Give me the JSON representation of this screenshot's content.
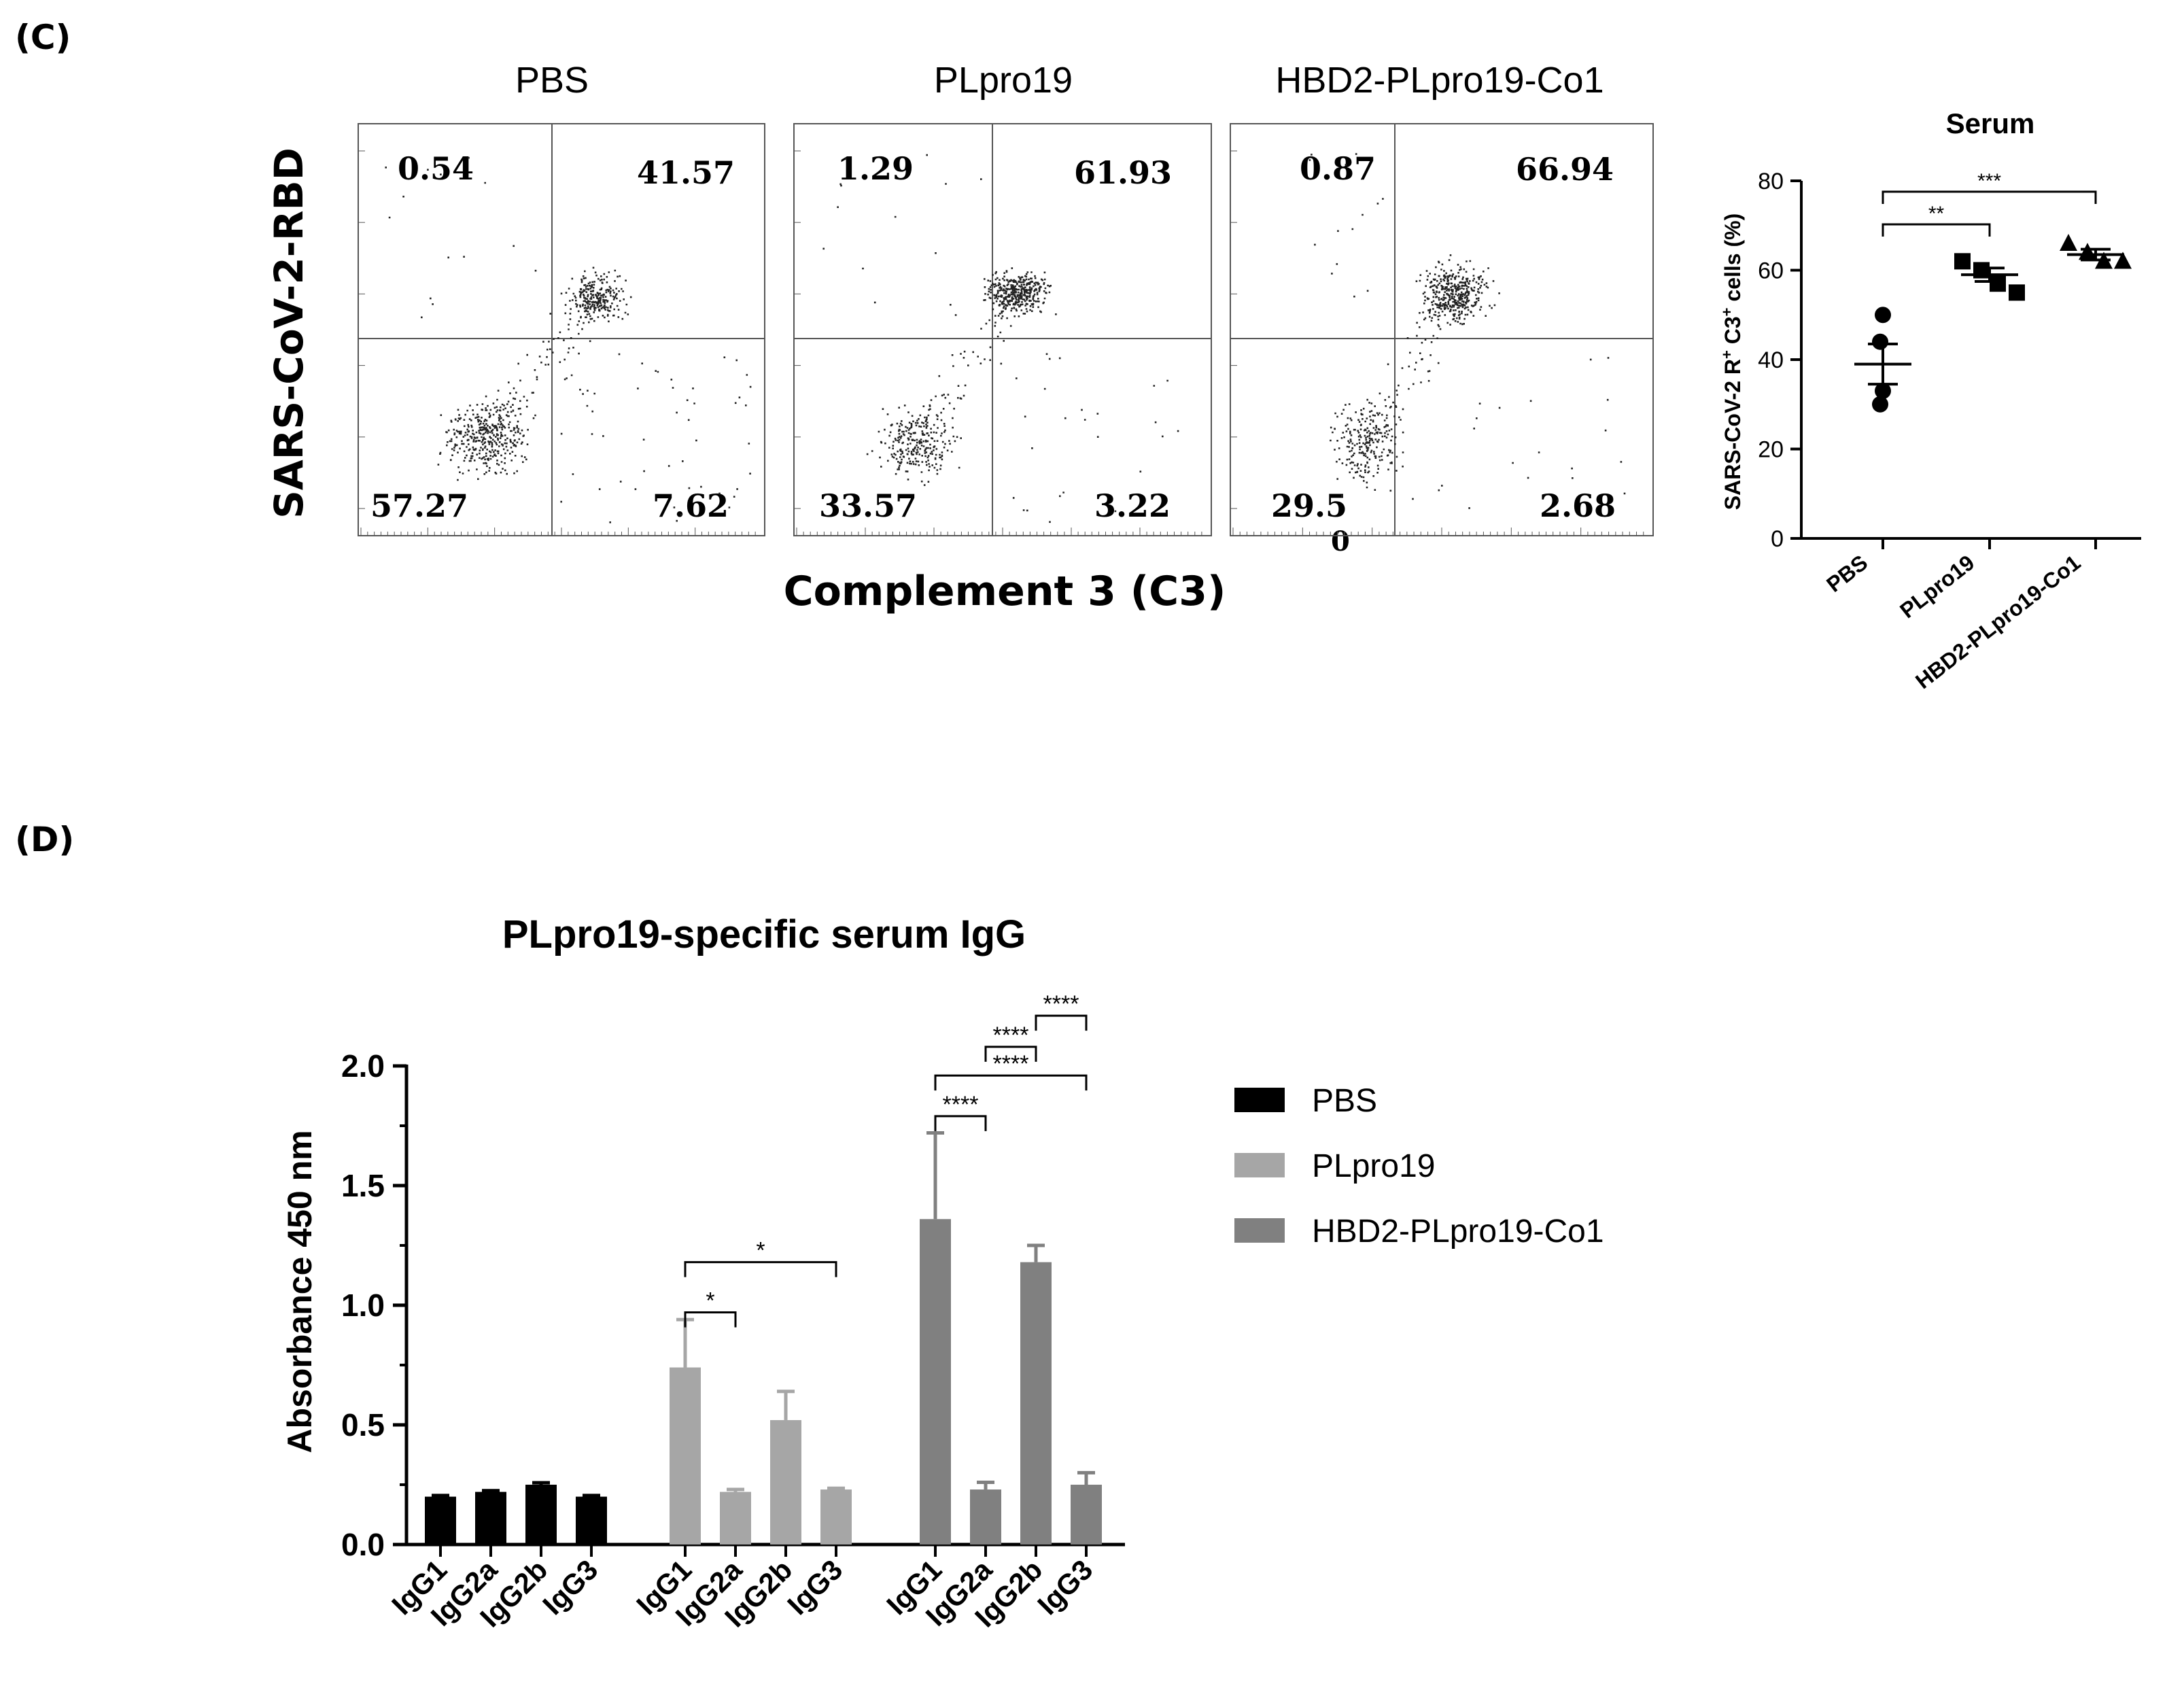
{
  "panel_labels": {
    "c": "(C)",
    "d": "(D)"
  },
  "flow": {
    "y_label": "SARS-CoV-2-RBD",
    "x_label": "Complement 3 (C3)",
    "plots": [
      {
        "title": "PBS",
        "q_ul": "0.54",
        "q_ur": "41.57",
        "q_ll": "57.27",
        "q_lr": "7.62"
      },
      {
        "title": "PLpro19",
        "q_ul": "1.29",
        "q_ur": "61.93",
        "q_ll": "33.57",
        "q_lr": "3.22"
      },
      {
        "title": "HBD2-PLpro19-Co1",
        "q_ul": "0.87",
        "q_ur": "66.94",
        "q_ll": "29.5",
        "q_lr": "2.68",
        "stray_mark": "0"
      }
    ]
  },
  "chart_data": [
    {
      "type": "scatter",
      "title": "Serum",
      "ylabel_main": "SARS-CoV-2 R",
      "ylabel_sup1": "+",
      "ylabel_mid": " C3",
      "ylabel_sup2": "+",
      "ylabel_end": " cells (%)",
      "ylim": [
        0,
        80
      ],
      "yticks": [
        "0",
        "20",
        "40",
        "60",
        "80"
      ],
      "categories": [
        "PBS",
        "PLpro19",
        "HBD2-PLpro19-Co1"
      ],
      "markers": [
        "circle",
        "square",
        "triangle"
      ],
      "points": [
        [
          50,
          44,
          33,
          30
        ],
        [
          62,
          60,
          57,
          55
        ],
        [
          66,
          64,
          62,
          62
        ]
      ],
      "means": [
        39,
        59,
        63.5
      ],
      "sem": [
        4.5,
        1.5,
        1.2
      ],
      "significance": [
        {
          "from": 0,
          "to": 1,
          "label": "**"
        },
        {
          "from": 0,
          "to": 2,
          "label": "***"
        }
      ]
    },
    {
      "type": "bar",
      "title": "PLpro19-specific serum IgG",
      "ylabel": "Absorbance 450 nm",
      "ylim": [
        0,
        2
      ],
      "yticks": [
        "0.0",
        "0.5",
        "1.0",
        "1.5",
        "2.0"
      ],
      "categories": [
        "IgG1",
        "IgG2a",
        "IgG2b",
        "IgG3"
      ],
      "legend_position": "right",
      "series": [
        {
          "name": "PBS",
          "color": "#000000",
          "values": [
            0.2,
            0.22,
            0.25,
            0.2
          ],
          "errors": [
            0.005,
            0.005,
            0.008,
            0.005
          ]
        },
        {
          "name": "PLpro19",
          "color": "#a6a6a6",
          "values": [
            0.74,
            0.22,
            0.52,
            0.23
          ],
          "errors": [
            0.2,
            0.01,
            0.12,
            0.005
          ]
        },
        {
          "name": "HBD2-PLpro19-Co1",
          "color": "#808080",
          "values": [
            1.36,
            0.23,
            1.18,
            0.25
          ],
          "errors": [
            0.36,
            0.03,
            0.07,
            0.05
          ]
        }
      ],
      "significance": [
        {
          "series": 1,
          "from": 0,
          "to": 1,
          "level": 0.97,
          "label": "*"
        },
        {
          "series": 1,
          "from": 0,
          "to": 3,
          "level": 1.18,
          "label": "*"
        },
        {
          "series": 2,
          "from": 0,
          "to": 1,
          "level": 1.79,
          "label": "****"
        },
        {
          "series": 2,
          "from": 0,
          "to": 3,
          "level": 1.96,
          "label": "****"
        },
        {
          "series": 2,
          "from": 1,
          "to": 2,
          "level": 2.08,
          "label": "****"
        },
        {
          "series": 2,
          "from": 2,
          "to": 3,
          "level": 2.21,
          "label": "****"
        }
      ]
    }
  ]
}
